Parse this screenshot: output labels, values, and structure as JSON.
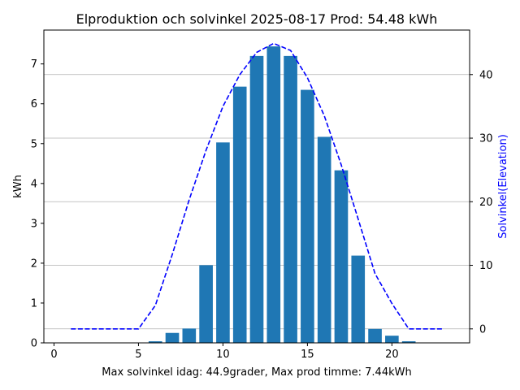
{
  "chart_data": {
    "type": "bar",
    "title": "Elproduktion och solvinkel 2025-08-17 Prod: 54.48 kWh",
    "xlabel": "Max solvinkel idag: 44.9grader, Max prod timme: 7.44kWh",
    "ylabel": "kWh",
    "y2label": "Solvinkel(Elevation)",
    "xlim": [
      -0.6,
      24.6
    ],
    "ylim": [
      0,
      7.85
    ],
    "y2lim": [
      -2.2,
      47.0
    ],
    "xticks": [
      0,
      5,
      10,
      15,
      20
    ],
    "yticks": [
      0,
      1,
      2,
      3,
      4,
      5,
      6,
      7
    ],
    "y2ticks": [
      0,
      10,
      20,
      30,
      40
    ],
    "y2_grid": true,
    "series": [
      {
        "type": "bar",
        "color": "#1f77b4",
        "x": [
          6,
          7,
          8,
          9,
          10,
          11,
          12,
          13,
          14,
          15,
          16,
          17,
          18,
          19,
          20,
          21
        ],
        "values": [
          0.04,
          0.25,
          0.36,
          1.95,
          5.03,
          6.43,
          7.2,
          7.44,
          7.2,
          6.35,
          5.17,
          4.33,
          2.19,
          0.35,
          0.18,
          0.04
        ]
      },
      {
        "type": "line",
        "axis": "right",
        "style": "dashed",
        "color": "#0000ff",
        "x": [
          1,
          2,
          3,
          4,
          5,
          6,
          7,
          8,
          9,
          10,
          11,
          12,
          13,
          14,
          15,
          16,
          17,
          18,
          19,
          20,
          21,
          22,
          23
        ],
        "values": [
          0,
          0,
          0,
          0,
          0,
          3.7,
          11.7,
          20.3,
          28.1,
          35.0,
          40.0,
          43.5,
          44.9,
          43.8,
          39.5,
          33.5,
          25.8,
          17.3,
          8.7,
          4.0,
          0,
          0,
          0
        ]
      }
    ]
  }
}
